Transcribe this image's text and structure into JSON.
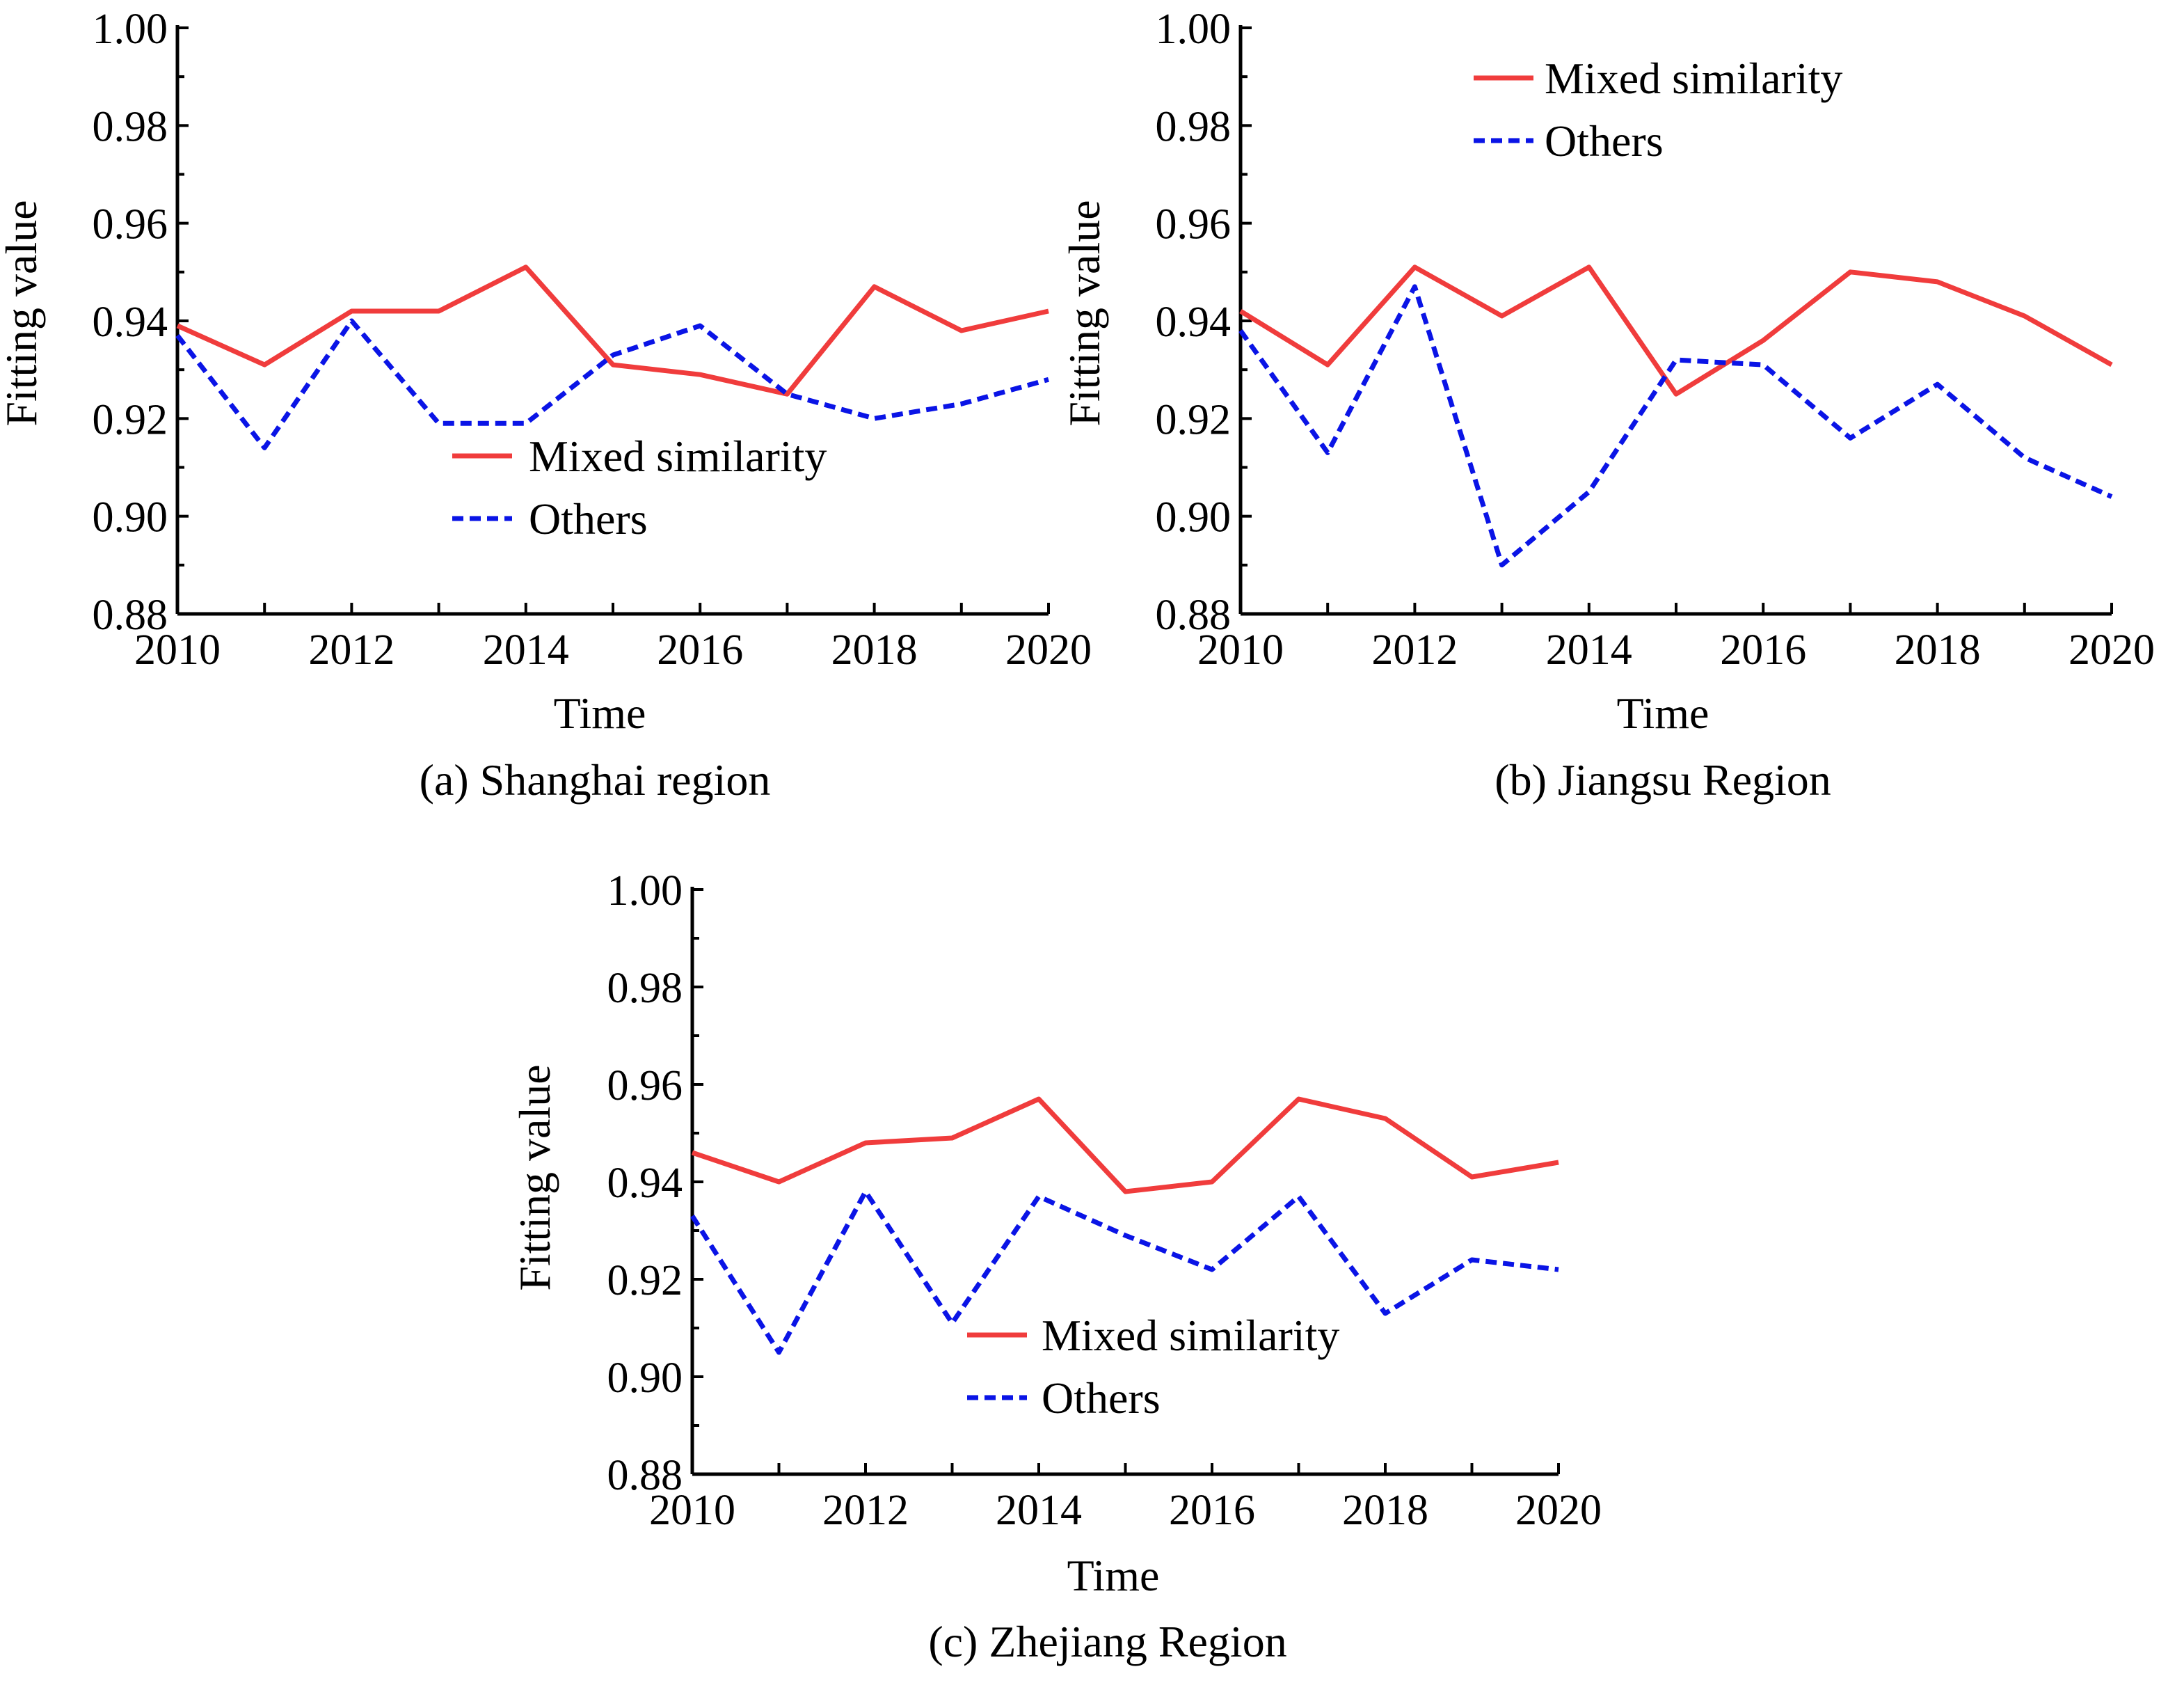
{
  "chart_data": [
    {
      "type": "line",
      "caption": "(a) Shanghai region",
      "xlabel": "Time",
      "ylabel": "Fitting value",
      "xlim": [
        2010,
        2020
      ],
      "ylim": [
        0.88,
        1.0
      ],
      "x": [
        2010,
        2011,
        2012,
        2013,
        2014,
        2015,
        2016,
        2017,
        2018,
        2019,
        2020
      ],
      "x_ticks": [
        "2010",
        "2012",
        "2014",
        "2016",
        "2018",
        "2020"
      ],
      "y_ticks": [
        "0.88",
        "0.90",
        "0.92",
        "0.94",
        "0.96",
        "0.98",
        "1.00"
      ],
      "legend_position": "center",
      "series": [
        {
          "name": "Mixed similarity",
          "color": "#f03c3c",
          "style": "solid",
          "values": [
            0.939,
            0.931,
            0.942,
            0.942,
            0.951,
            0.931,
            0.929,
            0.925,
            0.947,
            0.938,
            0.942
          ]
        },
        {
          "name": "Others",
          "color": "#0a14e6",
          "style": "dashed",
          "values": [
            0.937,
            0.914,
            0.94,
            0.919,
            0.919,
            0.933,
            0.939,
            0.925,
            0.92,
            0.923,
            0.928
          ]
        }
      ]
    },
    {
      "type": "line",
      "caption": "(b) Jiangsu Region",
      "xlabel": "Time",
      "ylabel": "Fitting value",
      "xlim": [
        2010,
        2020
      ],
      "ylim": [
        0.88,
        1.0
      ],
      "x": [
        2010,
        2011,
        2012,
        2013,
        2014,
        2015,
        2016,
        2017,
        2018,
        2019,
        2020
      ],
      "x_ticks": [
        "2010",
        "2012",
        "2014",
        "2016",
        "2018",
        "2020"
      ],
      "y_ticks": [
        "0.88",
        "0.90",
        "0.92",
        "0.94",
        "0.96",
        "0.98",
        "1.00"
      ],
      "legend_position": "top-left",
      "series": [
        {
          "name": "Mixed similarity",
          "color": "#f03c3c",
          "style": "solid",
          "values": [
            0.942,
            0.931,
            0.951,
            0.941,
            0.951,
            0.925,
            0.936,
            0.95,
            0.948,
            0.941,
            0.931
          ]
        },
        {
          "name": "Others",
          "color": "#0a14e6",
          "style": "dashed",
          "values": [
            0.938,
            0.913,
            0.947,
            0.89,
            0.905,
            0.932,
            0.931,
            0.916,
            0.927,
            0.912,
            0.904
          ]
        }
      ]
    },
    {
      "type": "line",
      "caption": "(c) Zhejiang Region",
      "xlabel": "Time",
      "ylabel": "Fitting value",
      "xlim": [
        2010,
        2020
      ],
      "ylim": [
        0.88,
        1.0
      ],
      "x": [
        2010,
        2011,
        2012,
        2013,
        2014,
        2015,
        2016,
        2017,
        2018,
        2019,
        2020
      ],
      "x_ticks": [
        "2010",
        "2012",
        "2014",
        "2016",
        "2018",
        "2020"
      ],
      "y_ticks": [
        "0.88",
        "0.90",
        "0.92",
        "0.94",
        "0.96",
        "0.98",
        "1.00"
      ],
      "legend_position": "bottom-center",
      "series": [
        {
          "name": "Mixed similarity",
          "color": "#f03c3c",
          "style": "solid",
          "values": [
            0.946,
            0.94,
            0.948,
            0.949,
            0.957,
            0.938,
            0.94,
            0.957,
            0.953,
            0.941,
            0.944
          ]
        },
        {
          "name": "Others",
          "color": "#0a14e6",
          "style": "dashed",
          "values": [
            0.933,
            0.905,
            0.938,
            0.911,
            0.937,
            0.929,
            0.922,
            0.937,
            0.913,
            0.924,
            0.922
          ]
        }
      ]
    }
  ]
}
